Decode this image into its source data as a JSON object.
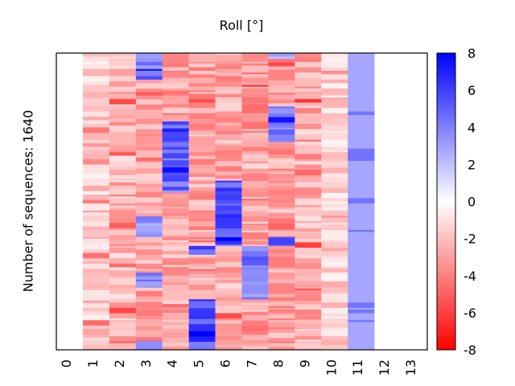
{
  "chart_data": {
    "type": "heatmap",
    "title": "Roll [°]",
    "ylabel": "Number of sequences: 1640",
    "xlabel": "",
    "x_ticks": [
      "0",
      "1",
      "2",
      "3",
      "4",
      "5",
      "6",
      "7",
      "8",
      "9",
      "10",
      "11",
      "12",
      "13"
    ],
    "colorbar": {
      "ticks": [
        "8",
        "6",
        "4",
        "2",
        "0",
        "-2",
        "-4",
        "-6",
        "-8"
      ],
      "range": [
        -8,
        8
      ],
      "colors": {
        "min": "#ff0000",
        "mid": "#ffffff",
        "max": "#0000ff"
      }
    },
    "n_rows": 1640,
    "columns": [
      {
        "index": 0,
        "blocks": []
      },
      {
        "index": 1,
        "blocks": [
          [
            0,
            1,
            -1.5
          ]
        ]
      },
      {
        "index": 2,
        "blocks": [
          [
            0,
            1,
            -2.3
          ]
        ]
      },
      {
        "index": 3,
        "blocks": [
          [
            0,
            0.09,
            4.5
          ],
          [
            0.09,
            0.45,
            -2.8
          ],
          [
            0.45,
            0.55,
            -3.0
          ],
          [
            0.55,
            0.62,
            3.0
          ],
          [
            0.62,
            0.74,
            -2.8
          ],
          [
            0.74,
            0.79,
            3.2
          ],
          [
            0.79,
            0.97,
            -2.8
          ],
          [
            0.97,
            1,
            5.0
          ]
        ]
      },
      {
        "index": 4,
        "blocks": [
          [
            0,
            0.23,
            -2.8
          ],
          [
            0.23,
            0.47,
            4.6
          ],
          [
            0.47,
            1,
            -2.6
          ]
        ]
      },
      {
        "index": 5,
        "blocks": [
          [
            0,
            0.65,
            -2.8
          ],
          [
            0.65,
            0.68,
            5
          ],
          [
            0.68,
            0.83,
            -2.6
          ],
          [
            0.83,
            1,
            5.5
          ]
        ]
      },
      {
        "index": 6,
        "blocks": [
          [
            0,
            0.43,
            -2.8
          ],
          [
            0.43,
            0.65,
            5.5
          ],
          [
            0.65,
            1,
            -2.6
          ]
        ]
      },
      {
        "index": 7,
        "blocks": [
          [
            0,
            0.33,
            -3.2
          ],
          [
            0.33,
            0.65,
            -2.6
          ],
          [
            0.65,
            0.83,
            4.2
          ],
          [
            0.83,
            1,
            -2.7
          ]
        ]
      },
      {
        "index": 8,
        "blocks": [
          [
            0,
            0.02,
            3
          ],
          [
            0.02,
            0.18,
            -3.0
          ],
          [
            0.18,
            0.3,
            4.0
          ],
          [
            0.3,
            0.62,
            -2.8
          ],
          [
            0.62,
            0.65,
            4.5
          ],
          [
            0.65,
            1,
            -3.0
          ]
        ]
      },
      {
        "index": 9,
        "blocks": [
          [
            0,
            1,
            -2.5
          ]
        ]
      },
      {
        "index": 10,
        "blocks": [
          [
            0,
            1,
            -1.3
          ]
        ]
      },
      {
        "index": 11,
        "blocks": [
          [
            0,
            1,
            2.8
          ]
        ]
      },
      {
        "index": 12,
        "blocks": []
      },
      {
        "index": 13,
        "blocks": []
      }
    ]
  }
}
